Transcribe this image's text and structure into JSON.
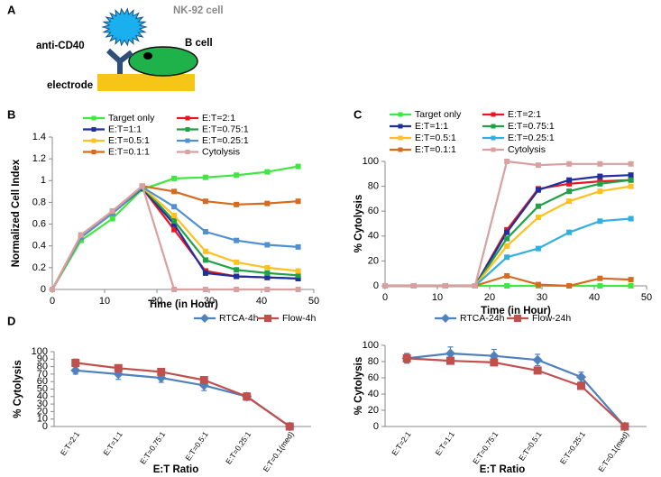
{
  "panels": [
    "A",
    "B",
    "C",
    "D"
  ],
  "diagram": {
    "nk_cell": "NK-92 cell",
    "b_cell": "B cell",
    "antibody": "anti-CD40",
    "electrode": "electrode"
  },
  "chart_data": [
    {
      "type": "line",
      "xlabel": "Time (in Hour)",
      "ylabel": "Normalized Cell Index",
      "x": [
        0,
        5.5,
        11.5,
        17.2,
        23.3,
        29.3,
        35.2,
        41.1,
        47
      ],
      "xlim": [
        0,
        50
      ],
      "xticks": [
        0,
        10,
        20,
        30,
        40,
        50
      ],
      "ylim": [
        0,
        1.4
      ],
      "yticks": [
        0,
        0.2,
        0.4,
        0.6,
        0.8,
        1,
        1.2,
        1.4
      ],
      "series": [
        {
          "name": "Target only",
          "color": "#3ee83e",
          "values": [
            0,
            0.45,
            0.65,
            0.92,
            1.02,
            1.03,
            1.05,
            1.08,
            1.13
          ]
        },
        {
          "name": "E:T=2:1",
          "color": "#e8161f",
          "values": [
            0,
            0.48,
            0.7,
            0.93,
            0.55,
            0.17,
            0.12,
            0.11,
            0.1
          ]
        },
        {
          "name": "E:T=1:1",
          "color": "#1f2f9f",
          "values": [
            0,
            0.48,
            0.7,
            0.93,
            0.6,
            0.15,
            0.12,
            0.11,
            0.1
          ]
        },
        {
          "name": "E:T=0.75:1",
          "color": "#21a048",
          "values": [
            0,
            0.48,
            0.7,
            0.94,
            0.63,
            0.27,
            0.18,
            0.15,
            0.13
          ]
        },
        {
          "name": "E:T=0.5:1",
          "color": "#ffc020",
          "values": [
            0,
            0.48,
            0.7,
            0.94,
            0.68,
            0.35,
            0.25,
            0.2,
            0.17
          ]
        },
        {
          "name": "E:T=0.25:1",
          "color": "#4f91d0",
          "values": [
            0,
            0.48,
            0.7,
            0.94,
            0.76,
            0.53,
            0.45,
            0.41,
            0.39
          ]
        },
        {
          "name": "E:T=0.1:1",
          "color": "#d86a20",
          "values": [
            0,
            0.5,
            0.72,
            0.95,
            0.9,
            0.81,
            0.78,
            0.79,
            0.81
          ]
        },
        {
          "name": "Cytolysis",
          "color": "#d8a0a0",
          "values": [
            0,
            0.5,
            0.72,
            0.95,
            0,
            0,
            0,
            0,
            0
          ]
        }
      ]
    },
    {
      "type": "line",
      "xlabel": "Time (in Hour)",
      "ylabel": "% Cytolysis",
      "x": [
        0,
        5.5,
        11.5,
        17.2,
        23.3,
        29.3,
        35.2,
        41.1,
        47
      ],
      "xlim": [
        0,
        50
      ],
      "xticks": [
        0,
        10,
        20,
        30,
        40,
        50
      ],
      "ylim": [
        0,
        100
      ],
      "yticks": [
        0,
        20,
        40,
        60,
        80,
        100
      ],
      "series": [
        {
          "name": "Target only",
          "color": "#3ee83e",
          "values": [
            0,
            0,
            0,
            0,
            0,
            0,
            0,
            0,
            0
          ]
        },
        {
          "name": "E:T=2:1",
          "color": "#e8161f",
          "values": [
            0,
            0,
            0,
            0,
            45,
            78,
            82,
            84,
            85
          ]
        },
        {
          "name": "E:T=1:1",
          "color": "#1f2f9f",
          "values": [
            0,
            0,
            0,
            0,
            43,
            77,
            85,
            88,
            89
          ]
        },
        {
          "name": "E:T=0.75:1",
          "color": "#21a048",
          "values": [
            0,
            0,
            0,
            0,
            38,
            64,
            76,
            82,
            85
          ]
        },
        {
          "name": "E:T=0.5:1",
          "color": "#ffc020",
          "values": [
            0,
            0,
            0,
            0,
            32,
            55,
            68,
            76,
            80
          ]
        },
        {
          "name": "E:T=0.25:1",
          "color": "#30b0e0",
          "values": [
            0,
            0,
            0,
            0,
            23,
            30,
            43,
            52,
            54
          ]
        },
        {
          "name": "E:T=0.1:1",
          "color": "#d86a20",
          "values": [
            0,
            0,
            0,
            0,
            8,
            1,
            0,
            6,
            5
          ]
        },
        {
          "name": "Cytolysis",
          "color": "#d8a0a0",
          "values": [
            0,
            0,
            0,
            0,
            100,
            97,
            98,
            98,
            98
          ]
        }
      ]
    },
    {
      "type": "line",
      "xlabel": "E:T Ratio",
      "ylabel": "% Cytolysis",
      "categories": [
        "E:T=2:1",
        "E:T=1:1",
        "E:T=0.75:1",
        "E:T=0.5:1",
        "E:T=0.25:1",
        "E:T=0.1(med)"
      ],
      "ylim": [
        0,
        100
      ],
      "yticks": [
        0,
        10,
        20,
        30,
        40,
        50,
        60,
        70,
        80,
        90,
        100
      ],
      "series": [
        {
          "name": "RTCA-4h",
          "color": "#4f81bd",
          "marker": "diamond",
          "values": [
            75,
            70,
            65,
            55,
            40,
            0
          ],
          "errors": [
            5,
            7,
            6,
            7,
            5,
            0
          ]
        },
        {
          "name": "Flow-4h",
          "color": "#c0504d",
          "marker": "square",
          "values": [
            85,
            78,
            73,
            62,
            40,
            0
          ],
          "errors": [
            5,
            4,
            3,
            3,
            4,
            0
          ]
        }
      ]
    },
    {
      "type": "line",
      "xlabel": "E:T Ratio",
      "ylabel": "% Cytolysis",
      "categories": [
        "E:T=2:1",
        "E:T=1:1",
        "E:T=0.75:1",
        "E:T=0.5:1",
        "E:T=0.25:1",
        "E:T=0.1(med)"
      ],
      "ylim": [
        0,
        100
      ],
      "yticks": [
        0,
        20,
        40,
        60,
        80,
        100
      ],
      "series": [
        {
          "name": "RTCA-24h",
          "color": "#4f81bd",
          "marker": "diamond",
          "values": [
            84,
            90,
            87,
            82,
            61,
            0
          ],
          "errors": [
            6,
            8,
            8,
            7,
            6,
            0
          ]
        },
        {
          "name": "Flow-24h",
          "color": "#c0504d",
          "marker": "square",
          "values": [
            84,
            81,
            79,
            69,
            50,
            0
          ],
          "errors": [
            5,
            4,
            4,
            4,
            4,
            0
          ]
        }
      ]
    }
  ]
}
